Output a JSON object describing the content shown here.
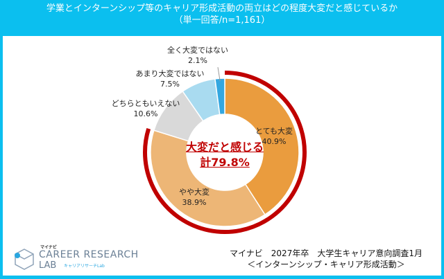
{
  "header": {
    "title": "学業とインターンシップ等のキャリア形成活動の両立はどの程度大変だと感じているか",
    "subtitle": "（単一回答/n=1,161）"
  },
  "chart_data": {
    "type": "pie",
    "variant": "donut",
    "title": "学業とインターンシップ等のキャリア形成活動の両立はどの程度大変だと感じているか",
    "subtitle": "（単一回答/n=1,161）",
    "categories": [
      "とても大変",
      "やや大変",
      "どちらともいえない",
      "あまり大変ではない",
      "全く大変ではない"
    ],
    "values": [
      40.9,
      38.9,
      10.6,
      7.5,
      2.1
    ],
    "value_labels": [
      "40.9%",
      "38.9%",
      "10.6%",
      "7.5%",
      "2.1%"
    ],
    "colors": [
      "#EA9C3E",
      "#EDB676",
      "#D9D9D9",
      "#A9DBF0",
      "#33A7E0"
    ],
    "highlight": {
      "line1": "大変だと感じる",
      "line2": "計79.8%",
      "value": 79.8,
      "color": "#C00000"
    }
  },
  "footer": {
    "source_line1": "マイナビ　2027年卒　大学生キャリア意向調査1月",
    "source_line2": "＜インターンシップ・キャリア形成活動＞",
    "logo": {
      "brand": "マイナビ",
      "line1": "CAREER RESEARCH",
      "line2": "LAB",
      "sub": "キャリアリサーチLab"
    }
  }
}
